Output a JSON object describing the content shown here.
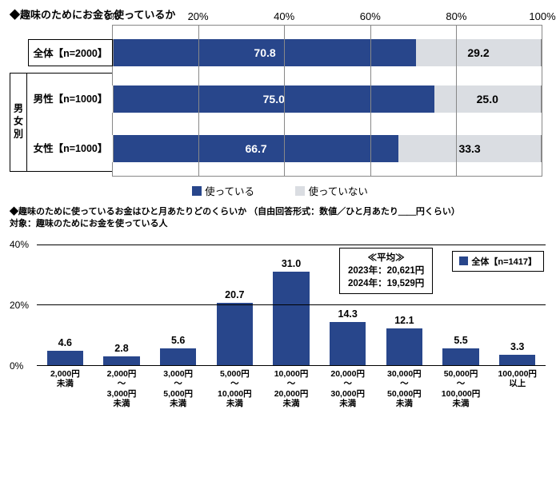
{
  "chart1": {
    "title": "◆趣味のためにお金を使っているか",
    "type": "stacked-bar-horizontal",
    "ticks": [
      0,
      20,
      40,
      60,
      80,
      100
    ],
    "tick_suffix": "%",
    "group_label": "男女別",
    "rows": [
      {
        "label": "全体【n=2000】",
        "a": 70.8,
        "b": 29.2
      },
      {
        "label": "男性【n=1000】",
        "a": 75.0,
        "b": 25.0
      },
      {
        "label": "女性【n=1000】",
        "a": 66.7,
        "b": 33.3
      }
    ],
    "legend_a": "使っている",
    "legend_b": "使っていない",
    "color_a": "#28468b",
    "color_b": "#dadde2"
  },
  "chart2": {
    "title1": "◆趣味のために使っているお金はひと月あたりどのくらいか （自由回答形式：数値／ひと月あたり＿＿円くらい）",
    "title2": "対象：趣味のためにお金を使っている人",
    "type": "bar-vertical",
    "ymax": 40,
    "yticks": [
      0,
      20,
      40
    ],
    "ytick_suffix": "%",
    "bar_color": "#28468b",
    "categories": [
      "2,000円\n未満",
      "2,000円\n～\n3,000円\n未満",
      "3,000円\n～\n5,000円\n未満",
      "5,000円\n～\n10,000円\n未満",
      "10,000円\n～\n20,000円\n未満",
      "20,000円\n～\n30,000円\n未満",
      "30,000円\n～\n50,000円\n未満",
      "50,000円\n～\n100,000円\n未満",
      "100,000円\n以上"
    ],
    "values": [
      4.6,
      2.8,
      5.6,
      20.7,
      31.0,
      14.3,
      12.1,
      5.5,
      3.3
    ],
    "avg_heading": "≪平均≫",
    "avg_lines": [
      "2023年：20,621円",
      "2024年：19,529円"
    ],
    "legend_label": "全体【n=1417】"
  }
}
